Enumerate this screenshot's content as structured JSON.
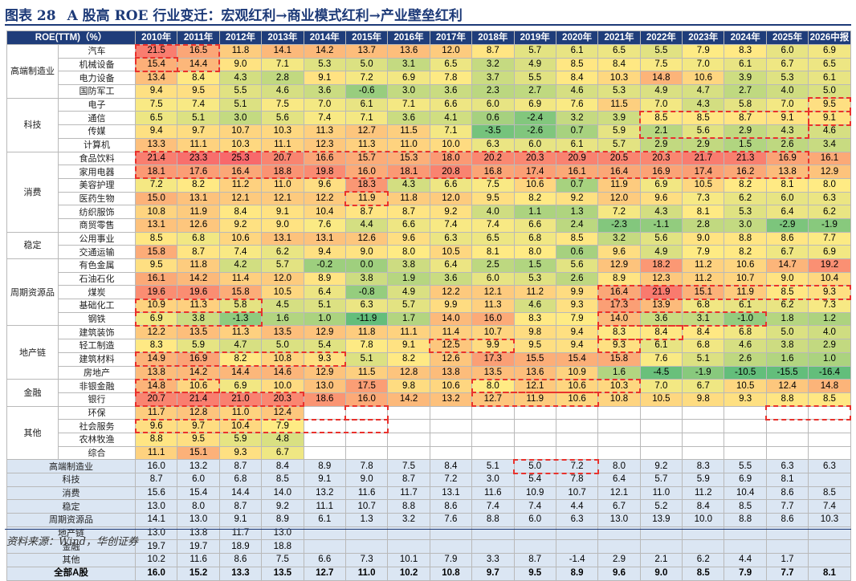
{
  "title": {
    "label": "图表 28",
    "text": "A 股高 ROE 行业变迁：宏观红利→商业模式红利→产业壁垒红利"
  },
  "columns": [
    "ROE(TTM)（%）",
    "2010年",
    "2011年",
    "2012年",
    "2013年",
    "2014年",
    "2015年",
    "2016年",
    "2017年",
    "2018年",
    "2019年",
    "2020年",
    "2021年",
    "2022年",
    "2023年",
    "2024年",
    "2025年",
    "2026中报"
  ],
  "groups": [
    {
      "name": "高端制造业",
      "rows": [
        {
          "name": "汽车",
          "v": [
            "21.5",
            "16.5",
            "11.8",
            "14.1",
            "14.2",
            "13.7",
            "13.6",
            "12.0",
            "8.7",
            "5.7",
            "6.1",
            "6.5",
            "5.5",
            "7.9",
            "8.3",
            "6.0",
            "6.9"
          ]
        },
        {
          "name": "机械设备",
          "v": [
            "15.4",
            "14.4",
            "9.0",
            "7.1",
            "5.3",
            "5.0",
            "3.1",
            "6.5",
            "3.2",
            "4.9",
            "8.5",
            "8.4",
            "7.5",
            "7.0",
            "6.1",
            "6.7",
            "6.5"
          ]
        },
        {
          "name": "电力设备",
          "v": [
            "13.4",
            "8.4",
            "4.3",
            "2.8",
            "9.1",
            "7.2",
            "6.9",
            "7.8",
            "3.7",
            "5.5",
            "8.4",
            "10.3",
            "14.8",
            "10.6",
            "3.9",
            "5.3",
            "6.1"
          ]
        },
        {
          "name": "国防军工",
          "v": [
            "9.4",
            "9.5",
            "5.5",
            "4.6",
            "3.6",
            "-0.6",
            "3.0",
            "3.6",
            "2.3",
            "2.7",
            "4.6",
            "5.3",
            "4.9",
            "4.7",
            "2.7",
            "4.0",
            "5.0"
          ]
        }
      ]
    },
    {
      "name": "科技",
      "rows": [
        {
          "name": "电子",
          "v": [
            "7.5",
            "7.4",
            "5.1",
            "7.5",
            "7.0",
            "6.1",
            "7.1",
            "6.6",
            "6.0",
            "6.9",
            "7.6",
            "11.5",
            "7.0",
            "4.3",
            "5.8",
            "7.0",
            "9.5"
          ]
        },
        {
          "name": "通信",
          "v": [
            "6.5",
            "5.1",
            "3.0",
            "5.6",
            "7.4",
            "7.1",
            "3.6",
            "4.1",
            "0.6",
            "-2.4",
            "3.2",
            "3.9",
            "8.5",
            "8.5",
            "8.7",
            "9.1",
            "9.1"
          ]
        },
        {
          "name": "传媒",
          "v": [
            "9.4",
            "9.7",
            "10.7",
            "10.3",
            "11.3",
            "12.7",
            "11.5",
            "7.1",
            "-3.5",
            "-2.6",
            "0.7",
            "5.9",
            "2.1",
            "5.6",
            "2.9",
            "4.3",
            "4.6"
          ]
        },
        {
          "name": "计算机",
          "v": [
            "13.3",
            "11.1",
            "10.3",
            "11.1",
            "12.3",
            "11.3",
            "11.0",
            "10.0",
            "6.3",
            "6.0",
            "6.1",
            "5.7",
            "2.9",
            "2.9",
            "1.5",
            "2.6",
            "3.4"
          ]
        }
      ]
    },
    {
      "name": "消费",
      "rows": [
        {
          "name": "食品饮料",
          "v": [
            "21.4",
            "23.3",
            "25.3",
            "20.7",
            "16.6",
            "15.7",
            "15.3",
            "18.0",
            "20.2",
            "20.3",
            "20.9",
            "20.5",
            "20.3",
            "21.7",
            "21.3",
            "16.9",
            "16.1"
          ]
        },
        {
          "name": "家用电器",
          "v": [
            "18.1",
            "17.6",
            "16.4",
            "18.8",
            "19.8",
            "16.0",
            "18.1",
            "20.8",
            "16.8",
            "17.4",
            "16.1",
            "16.4",
            "16.9",
            "17.4",
            "16.2",
            "13.8",
            "12.9"
          ]
        },
        {
          "name": "美容护理",
          "v": [
            "7.2",
            "8.2",
            "11.2",
            "11.0",
            "9.6",
            "18.3",
            "4.3",
            "6.6",
            "7.5",
            "10.6",
            "0.7",
            "11.9",
            "6.9",
            "10.5",
            "8.2",
            "8.1",
            "8.0"
          ]
        },
        {
          "name": "医药生物",
          "v": [
            "15.0",
            "13.1",
            "12.1",
            "12.1",
            "12.2",
            "11.9",
            "11.8",
            "12.0",
            "9.5",
            "8.2",
            "9.2",
            "12.0",
            "9.6",
            "7.3",
            "6.2",
            "6.0",
            "6.3"
          ]
        },
        {
          "name": "纺织服饰",
          "v": [
            "10.8",
            "11.9",
            "8.4",
            "9.1",
            "10.4",
            "8.7",
            "8.7",
            "9.2",
            "4.0",
            "1.1",
            "1.3",
            "7.2",
            "4.3",
            "8.1",
            "5.3",
            "6.4",
            "6.2"
          ]
        },
        {
          "name": "商贸零售",
          "v": [
            "13.1",
            "12.6",
            "9.2",
            "9.0",
            "7.6",
            "4.4",
            "6.6",
            "7.4",
            "7.4",
            "6.6",
            "2.4",
            "-2.3",
            "-1.1",
            "2.8",
            "3.0",
            "-2.9",
            "-1.9"
          ]
        }
      ]
    },
    {
      "name": "稳定",
      "rows": [
        {
          "name": "公用事业",
          "v": [
            "8.5",
            "6.8",
            "10.6",
            "13.1",
            "13.1",
            "12.6",
            "9.6",
            "6.3",
            "6.5",
            "6.8",
            "8.5",
            "3.2",
            "5.6",
            "9.0",
            "8.8",
            "8.6",
            "7.7"
          ]
        },
        {
          "name": "交通运输",
          "v": [
            "15.8",
            "8.7",
            "7.4",
            "6.2",
            "9.4",
            "9.0",
            "8.0",
            "10.5",
            "8.1",
            "8.0",
            "0.6",
            "9.6",
            "4.9",
            "7.9",
            "8.2",
            "6.7",
            "6.9"
          ]
        }
      ]
    },
    {
      "name": "周期资源品",
      "rows": [
        {
          "name": "有色金属",
          "v": [
            "9.5",
            "11.8",
            "4.2",
            "5.7",
            "-0.2",
            "0.0",
            "3.8",
            "6.4",
            "2.5",
            "1.5",
            "5.6",
            "12.9",
            "18.2",
            "11.2",
            "10.6",
            "14.7",
            "19.2"
          ]
        },
        {
          "name": "石油石化",
          "v": [
            "16.1",
            "14.2",
            "11.4",
            "12.0",
            "8.9",
            "3.8",
            "1.9",
            "3.6",
            "6.0",
            "5.3",
            "2.6",
            "8.9",
            "12.3",
            "11.2",
            "10.7",
            "9.0",
            "10.4"
          ]
        },
        {
          "name": "煤炭",
          "v": [
            "19.6",
            "19.6",
            "15.8",
            "10.5",
            "6.4",
            "-0.8",
            "4.9",
            "12.2",
            "12.1",
            "11.2",
            "9.9",
            "16.4",
            "21.9",
            "15.1",
            "11.9",
            "8.5",
            "9.3"
          ]
        },
        {
          "name": "基础化工",
          "v": [
            "10.9",
            "11.3",
            "5.8",
            "4.5",
            "5.1",
            "6.3",
            "5.7",
            "9.9",
            "11.3",
            "4.6",
            "9.3",
            "17.3",
            "13.9",
            "6.8",
            "6.1",
            "6.2",
            "7.3"
          ]
        },
        {
          "name": "钢铁",
          "v": [
            "6.9",
            "3.8",
            "-1.3",
            "1.6",
            "1.0",
            "-11.9",
            "1.7",
            "14.0",
            "16.0",
            "8.3",
            "7.9",
            "14.0",
            "3.6",
            "3.1",
            "-1.0",
            "1.8",
            "1.2"
          ]
        }
      ]
    },
    {
      "name": "地产链",
      "rows": [
        {
          "name": "建筑装饰",
          "v": [
            "12.2",
            "13.5",
            "11.3",
            "13.5",
            "12.9",
            "11.8",
            "11.1",
            "11.4",
            "10.7",
            "9.8",
            "9.4",
            "8.3",
            "8.4",
            "8.4",
            "6.8",
            "5.0",
            "4.0"
          ]
        },
        {
          "name": "轻工制造",
          "v": [
            "8.3",
            "5.9",
            "4.7",
            "5.0",
            "5.4",
            "7.8",
            "9.1",
            "12.5",
            "9.9",
            "9.5",
            "9.4",
            "9.3",
            "6.1",
            "6.8",
            "4.6",
            "3.8",
            "2.9"
          ]
        },
        {
          "name": "建筑材料",
          "v": [
            "14.9",
            "16.9",
            "8.2",
            "10.8",
            "9.3",
            "5.1",
            "8.2",
            "12.6",
            "17.3",
            "15.5",
            "15.4",
            "15.8",
            "7.6",
            "5.1",
            "2.6",
            "1.6",
            "1.0"
          ]
        },
        {
          "name": "房地产",
          "v": [
            "13.8",
            "14.2",
            "14.4",
            "14.6",
            "12.9",
            "11.5",
            "12.8",
            "13.8",
            "13.5",
            "13.6",
            "10.9",
            "1.6",
            "-4.5",
            "-1.9",
            "-10.5",
            "-15.5",
            "-16.4"
          ]
        }
      ]
    },
    {
      "name": "金融",
      "rows": [
        {
          "name": "非银金融",
          "v": [
            "14.8",
            "10.6",
            "6.9",
            "10.0",
            "13.0",
            "17.5",
            "9.8",
            "10.6",
            "8.0",
            "12.1",
            "10.6",
            "10.3",
            "7.0",
            "6.7",
            "10.5",
            "12.4",
            "14.8"
          ]
        },
        {
          "name": "银行",
          "v": [
            "20.7",
            "21.4",
            "21.0",
            "20.3",
            "18.6",
            "16.0",
            "14.2",
            "13.2",
            "12.7",
            "11.9",
            "10.6",
            "10.8",
            "10.5",
            "9.8",
            "9.3",
            "8.8",
            "8.5"
          ]
        }
      ]
    },
    {
      "name": "其他",
      "rows": [
        {
          "name": "环保",
          "v": [
            "11.7",
            "12.8",
            "11.0",
            "12.4",
            "",
            "",
            "",
            "",
            "",
            "",
            "",
            "",
            "",
            "",
            "",
            "",
            ""
          ]
        },
        {
          "name": "社会服务",
          "v": [
            "9.6",
            "9.7",
            "10.4",
            "7.9",
            "",
            "",
            "",
            "",
            "",
            "",
            "",
            "",
            "",
            "",
            "",
            "",
            ""
          ]
        },
        {
          "name": "农林牧渔",
          "v": [
            "8.8",
            "9.5",
            "5.9",
            "4.8",
            "",
            "",
            "",
            "",
            "",
            "",
            "",
            "",
            "",
            "",
            "",
            "",
            ""
          ]
        },
        {
          "name": "综合",
          "v": [
            "11.1",
            "15.1",
            "9.3",
            "6.7",
            "",
            "",
            "",
            "",
            "",
            "",
            "",
            "",
            "",
            "",
            "",
            "",
            ""
          ]
        }
      ]
    }
  ],
  "summary": [
    {
      "name": "高端制造业",
      "v": [
        "16.0",
        "13.2",
        "8.7",
        "8.4",
        "8.9",
        "7.8",
        "7.5",
        "8.4",
        "5.1",
        "5.0",
        "7.2",
        "8.0",
        "9.2",
        "8.3",
        "5.5",
        "6.3",
        "6.3"
      ]
    },
    {
      "name": "科技",
      "v": [
        "8.7",
        "6.0",
        "6.8",
        "8.5",
        "9.1",
        "9.0",
        "8.7",
        "7.2",
        "3.0",
        "5.4",
        "7.8",
        "6.4",
        "5.7",
        "5.9",
        "6.9",
        "8.1",
        ""
      ]
    },
    {
      "name": "消费",
      "v": [
        "15.6",
        "15.4",
        "14.4",
        "14.0",
        "13.2",
        "11.6",
        "11.7",
        "13.1",
        "11.6",
        "10.9",
        "10.7",
        "12.1",
        "11.0",
        "11.2",
        "10.4",
        "8.6",
        "8.5"
      ]
    },
    {
      "name": "稳定",
      "v": [
        "13.0",
        "8.0",
        "8.7",
        "9.2",
        "11.1",
        "10.7",
        "8.8",
        "8.6",
        "7.4",
        "7.4",
        "4.4",
        "6.7",
        "5.2",
        "8.4",
        "8.5",
        "7.7",
        "7.4"
      ]
    },
    {
      "name": "周期资源品",
      "v": [
        "14.1",
        "13.0",
        "9.1",
        "8.9",
        "6.1",
        "1.3",
        "3.2",
        "7.6",
        "8.8",
        "6.0",
        "6.3",
        "13.0",
        "13.9",
        "10.0",
        "8.8",
        "8.6",
        "10.3"
      ]
    },
    {
      "name": "地产链",
      "v": [
        "13.0",
        "13.8",
        "11.7",
        "13.0",
        "",
        "",
        "",
        "",
        "",
        "",
        "",
        "",
        "",
        "",
        "",
        "",
        ""
      ]
    },
    {
      "name": "金融",
      "v": [
        "19.7",
        "19.7",
        "18.9",
        "18.8",
        "",
        "",
        "",
        "",
        "",
        "",
        "",
        "",
        "",
        "",
        "",
        "",
        ""
      ]
    },
    {
      "name": "其他",
      "v": [
        "10.2",
        "11.6",
        "8.6",
        "7.5",
        "6.6",
        "7.3",
        "10.1",
        "7.9",
        "3.3",
        "8.7",
        "-1.4",
        "2.9",
        "2.1",
        "6.2",
        "4.4",
        "1.7",
        ""
      ]
    }
  ],
  "total": {
    "name": "全部A股",
    "v": [
      "16.0",
      "15.2",
      "13.3",
      "13.5",
      "12.7",
      "11.0",
      "10.2",
      "10.8",
      "9.7",
      "9.5",
      "8.9",
      "9.6",
      "9.0",
      "8.5",
      "7.9",
      "7.7",
      "8.1"
    ]
  },
  "source": "资料来源：Wind，华创证券",
  "colors": {
    "header": "#1f3d7a",
    "high": "#f8696b",
    "mid": "#ffeb84",
    "low": "#63be7b",
    "summary_bg": "#dbe6f3",
    "highlight": "#e8322d"
  }
}
